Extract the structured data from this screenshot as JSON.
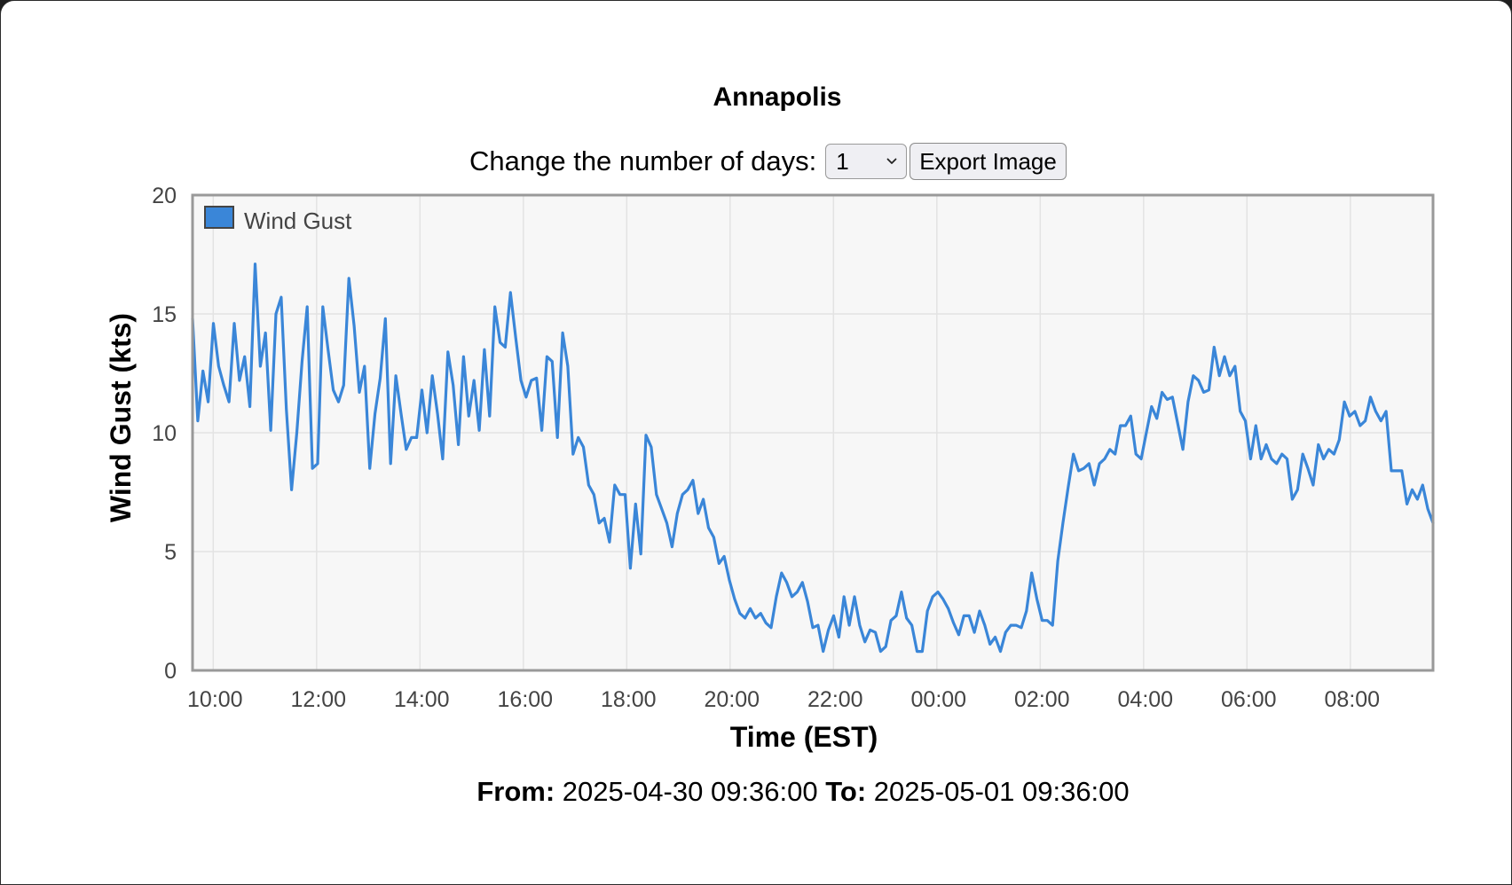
{
  "header": {
    "title": "Annapolis"
  },
  "controls": {
    "days_label": "Change the number of days:",
    "days_value": "1",
    "export_label": "Export Image"
  },
  "footer": {
    "from_label": "From:",
    "from_value": "2025-04-30 09:36:00",
    "to_label": "To:",
    "to_value": "2025-05-01 09:36:00"
  },
  "colors": {
    "series": "#3a86d8",
    "plot_background": "#f7f7f7",
    "plot_border": "#999999",
    "grid": "#e3e3e3"
  },
  "chart_data": {
    "type": "line",
    "title": "Annapolis",
    "xlabel": "Time (EST)",
    "ylabel": "Wind Gust (kts)",
    "ylim": [
      0,
      20
    ],
    "yticks": [
      0,
      5,
      10,
      15,
      20
    ],
    "xlim": [
      "2025-04-30 09:36",
      "2025-05-01 09:36"
    ],
    "xticks": [
      "10:00",
      "12:00",
      "14:00",
      "16:00",
      "18:00",
      "20:00",
      "22:00",
      "00:00",
      "02:00",
      "04:00",
      "06:00",
      "08:00"
    ],
    "legend": "top-left",
    "grid": true,
    "series": [
      {
        "name": "Wind Gust",
        "color": "#3a86d8",
        "sample_interval_minutes": 6,
        "values": [
          14.8,
          10.5,
          12.6,
          11.3,
          14.6,
          12.8,
          12.0,
          11.3,
          14.6,
          12.2,
          13.2,
          11.1,
          17.1,
          12.8,
          14.2,
          10.1,
          15.0,
          15.7,
          11.0,
          7.6,
          10.0,
          13.0,
          15.3,
          8.5,
          8.7,
          15.3,
          13.5,
          11.8,
          11.3,
          12.0,
          16.5,
          14.5,
          11.7,
          12.8,
          8.5,
          10.8,
          12.3,
          14.8,
          8.7,
          12.4,
          10.8,
          9.3,
          9.8,
          9.8,
          11.8,
          10.0,
          12.4,
          10.8,
          8.9,
          13.4,
          12.0,
          9.5,
          13.2,
          10.7,
          12.2,
          10.1,
          13.5,
          10.7,
          15.3,
          13.8,
          13.6,
          15.9,
          14.0,
          12.2,
          11.5,
          12.2,
          12.3,
          10.1,
          13.2,
          13.0,
          9.8,
          14.2,
          12.8,
          9.1,
          9.8,
          9.4,
          7.8,
          7.4,
          6.2,
          6.4,
          5.4,
          7.8,
          7.4,
          7.4,
          4.3,
          7.0,
          4.9,
          9.9,
          9.4,
          7.4,
          6.8,
          6.2,
          5.2,
          6.6,
          7.4,
          7.6,
          8.0,
          6.6,
          7.2,
          6.0,
          5.6,
          4.5,
          4.8,
          3.8,
          3.0,
          2.4,
          2.2,
          2.6,
          2.2,
          2.4,
          2.0,
          1.8,
          3.1,
          4.1,
          3.7,
          3.1,
          3.3,
          3.7,
          2.9,
          1.8,
          1.9,
          0.8,
          1.7,
          2.3,
          1.4,
          3.1,
          1.9,
          3.1,
          1.9,
          1.2,
          1.7,
          1.6,
          0.8,
          1.0,
          2.1,
          2.3,
          3.3,
          2.2,
          1.9,
          0.8,
          0.8,
          2.5,
          3.1,
          3.3,
          3.0,
          2.6,
          2.0,
          1.5,
          2.3,
          2.3,
          1.6,
          2.5,
          1.9,
          1.1,
          1.4,
          0.8,
          1.6,
          1.9,
          1.9,
          1.8,
          2.5,
          4.1,
          3.0,
          2.1,
          2.1,
          1.9,
          4.6,
          6.2,
          7.7,
          9.1,
          8.4,
          8.5,
          8.7,
          7.8,
          8.7,
          8.9,
          9.3,
          9.1,
          10.3,
          10.3,
          10.7,
          9.1,
          8.9,
          10.0,
          11.1,
          10.6,
          11.7,
          11.4,
          11.5,
          10.4,
          9.3,
          11.3,
          12.4,
          12.2,
          11.7,
          11.8,
          13.6,
          12.4,
          13.2,
          12.4,
          12.8,
          10.9,
          10.5,
          8.9,
          10.3,
          8.9,
          9.5,
          8.9,
          8.7,
          9.1,
          8.9,
          7.2,
          7.6,
          9.1,
          8.5,
          7.8,
          9.5,
          8.9,
          9.3,
          9.1,
          9.7,
          11.3,
          10.7,
          10.9,
          10.3,
          10.5,
          11.5,
          10.9,
          10.5,
          10.9,
          8.4,
          8.4,
          8.4,
          7.0,
          7.6,
          7.2,
          7.8,
          6.8,
          6.2
        ]
      }
    ]
  }
}
